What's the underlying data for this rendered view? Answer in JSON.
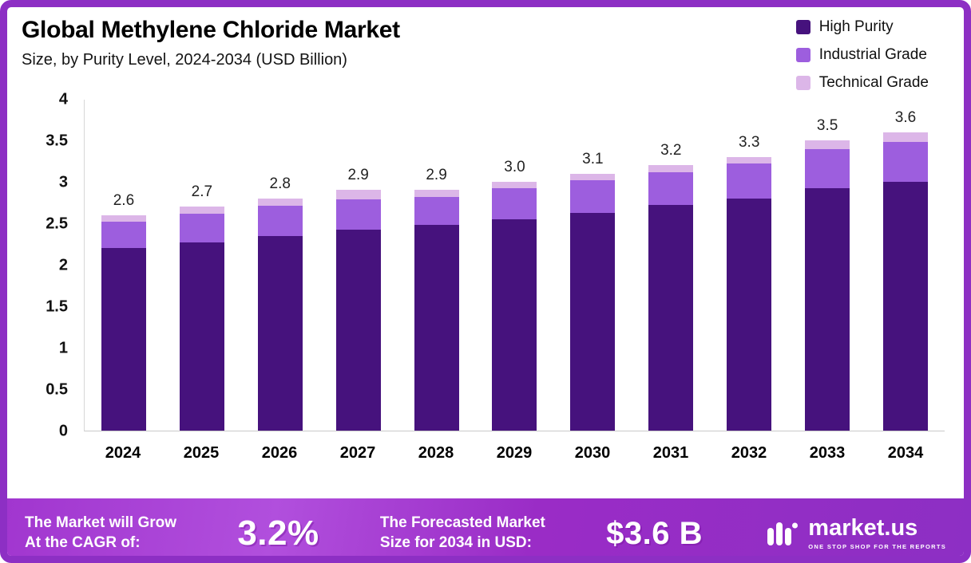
{
  "header": {
    "title": "Global Methylene Chloride Market",
    "subtitle": "Size, by Purity Level, 2024-2034 (USD Billion)"
  },
  "legend": [
    {
      "label": "High Purity",
      "color": "#46127d"
    },
    {
      "label": "Industrial Grade",
      "color": "#9d5ede"
    },
    {
      "label": "Technical Grade",
      "color": "#dcb6e8"
    }
  ],
  "chart_data": {
    "type": "bar",
    "subtype": "stacked",
    "title": "Global Methylene Chloride Market Size, by Purity Level, 2024-2034 (USD Billion)",
    "categories": [
      "2024",
      "2025",
      "2026",
      "2027",
      "2028",
      "2029",
      "2030",
      "2031",
      "2032",
      "2033",
      "2034"
    ],
    "totals": [
      "2.6",
      "2.7",
      "2.8",
      "2.9",
      "2.9",
      "3.0",
      "3.1",
      "3.2",
      "3.3",
      "3.5",
      "3.6"
    ],
    "series": [
      {
        "name": "High Purity",
        "color": "#46127d",
        "values": [
          2.2,
          2.27,
          2.35,
          2.42,
          2.48,
          2.55,
          2.63,
          2.72,
          2.8,
          2.92,
          3.0
        ]
      },
      {
        "name": "Industrial Grade",
        "color": "#9d5ede",
        "values": [
          0.32,
          0.35,
          0.36,
          0.37,
          0.34,
          0.37,
          0.39,
          0.4,
          0.42,
          0.47,
          0.48
        ]
      },
      {
        "name": "Technical Grade",
        "color": "#dcb6e8",
        "values": [
          0.08,
          0.08,
          0.09,
          0.11,
          0.08,
          0.08,
          0.08,
          0.08,
          0.08,
          0.11,
          0.12
        ]
      }
    ],
    "y_ticks": [
      "4",
      "3.5",
      "3",
      "2.5",
      "2",
      "1.5",
      "1",
      "0.5",
      "0"
    ],
    "ylim": [
      0,
      4
    ],
    "grid": false,
    "legend_position": "top-right",
    "xlabel": "",
    "ylabel": ""
  },
  "footer": {
    "cagr_line1": "The Market will Grow",
    "cagr_line2": "At the CAGR of:",
    "cagr_value": "3.2%",
    "forecast_line1": "The Forecasted Market",
    "forecast_line2": "Size for 2034 in USD:",
    "forecast_value": "$3.6 B",
    "brand": "market.us",
    "brand_tagline": "ONE STOP SHOP FOR THE REPORTS"
  }
}
